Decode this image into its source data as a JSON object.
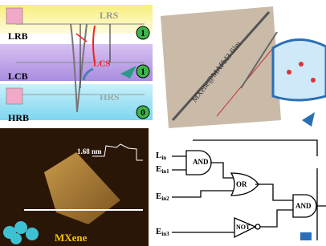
{
  "band_diagram": {
    "bands": [
      "LRB",
      "LCB",
      "HRB"
    ],
    "states": [
      "LRS",
      "LCS",
      "HRS"
    ],
    "levels": [
      "1",
      "1",
      "0"
    ]
  },
  "photo": {
    "label": "MXene@MAPbI3 film"
  },
  "afm": {
    "height": "1.68 nm",
    "label": "MXene"
  },
  "circuit": {
    "gates": [
      "AND",
      "OR",
      "AND",
      "NOT"
    ],
    "inputs": [
      {
        "name": "L",
        "sub": "in"
      },
      {
        "name": "E",
        "sub": "in1"
      },
      {
        "name": "E",
        "sub": "in2"
      },
      {
        "name": "E",
        "sub": "in3"
      }
    ]
  }
}
